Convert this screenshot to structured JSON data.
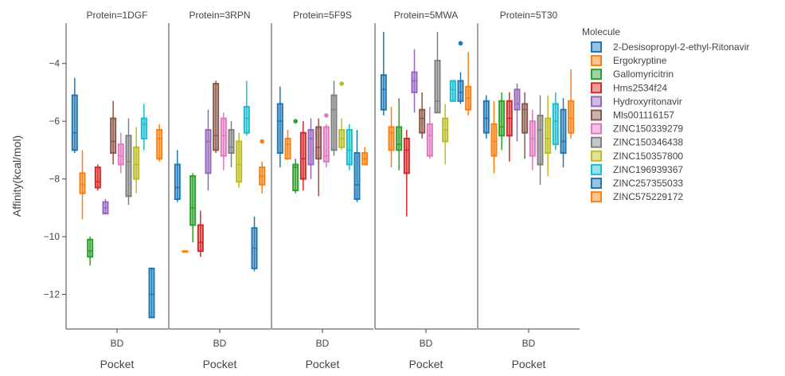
{
  "chart_data": {
    "type": "box",
    "xlabel": "Pocket",
    "ylabel": "Affinity(kcal/mol)",
    "x_category": "BD",
    "ylim": [
      -13.2,
      -2.6
    ],
    "y_ticks": [
      -12,
      -10,
      -8,
      -6,
      -4
    ],
    "y_tick_labels": [
      "−12",
      "−10",
      "−8",
      "−6",
      "−4"
    ],
    "legend_title": "Molecule",
    "legend_position": "right",
    "grid": false,
    "series": [
      {
        "name": "2-Desisopropyl-2-ethyl-Ritonavir",
        "color": "#1f77b4"
      },
      {
        "name": "Ergokryptine",
        "color": "#ff7f0e"
      },
      {
        "name": "Gallomyricitrin",
        "color": "#2ca02c"
      },
      {
        "name": "Hms2534f24",
        "color": "#d62728"
      },
      {
        "name": "Hydroxyritonavir",
        "color": "#9467bd"
      },
      {
        "name": "Mls001116157",
        "color": "#8c564b"
      },
      {
        "name": "ZINC150339279",
        "color": "#e377c2"
      },
      {
        "name": "ZINC150346438",
        "color": "#7f7f7f"
      },
      {
        "name": "ZINC150357800",
        "color": "#bcbd22"
      },
      {
        "name": "ZINC196939367",
        "color": "#17becf"
      },
      {
        "name": "ZINC257355033",
        "color": "#1f77b4"
      },
      {
        "name": "ZINC575229172",
        "color": "#ff7f0e"
      }
    ],
    "panels": [
      {
        "title": "Protein=1DGF",
        "boxes": [
          {
            "min": -7.1,
            "q1": -7.0,
            "median": -6.4,
            "q3": -5.1,
            "max": -4.5
          },
          {
            "min": -9.4,
            "q1": -8.5,
            "median": -8.2,
            "q3": -7.8,
            "max": -7.0
          },
          {
            "min": -11.0,
            "q1": -10.7,
            "median": -10.5,
            "q3": -10.1,
            "max": -10.0
          },
          {
            "min": -8.4,
            "q1": -8.3,
            "median": -8.1,
            "q3": -7.6,
            "max": -7.5
          },
          {
            "min": -9.2,
            "q1": -9.2,
            "median": -9.0,
            "q3": -8.8,
            "max": -8.7
          },
          {
            "min": -7.5,
            "q1": -7.1,
            "median": -6.7,
            "q3": -5.9,
            "max": -5.3
          },
          {
            "min": -7.8,
            "q1": -7.5,
            "median": -7.2,
            "q3": -6.8,
            "max": -6.4
          },
          {
            "min": -8.9,
            "q1": -8.6,
            "median": -7.4,
            "q3": -6.5,
            "max": -5.9
          },
          {
            "min": -8.5,
            "q1": -8.0,
            "median": -7.5,
            "q3": -6.9,
            "max": -6.2
          },
          {
            "min": -7.0,
            "q1": -6.6,
            "median": -6.1,
            "q3": -5.9,
            "max": -5.4
          },
          {
            "min": -12.8,
            "q1": -12.8,
            "median": -12.0,
            "q3": -11.1,
            "max": -11.1
          },
          {
            "min": -7.4,
            "q1": -7.3,
            "median": -6.6,
            "q3": -6.3,
            "max": -6.1
          }
        ]
      },
      {
        "title": "Protein=3RPN",
        "boxes": [
          {
            "min": -8.8,
            "q1": -8.7,
            "median": -8.3,
            "q3": -7.5,
            "max": -7.0
          },
          {
            "min": -10.5,
            "q1": -10.5,
            "median": -10.5,
            "q3": -10.5,
            "max": -10.5
          },
          {
            "min": -10.2,
            "q1": -9.6,
            "median": -9.0,
            "q3": -7.9,
            "max": -7.8
          },
          {
            "min": -10.7,
            "q1": -10.5,
            "median": -10.2,
            "q3": -9.6,
            "max": -9.1
          },
          {
            "min": -8.4,
            "q1": -7.8,
            "median": -6.7,
            "q3": -6.3,
            "max": -5.6
          },
          {
            "min": -7.1,
            "q1": -7.0,
            "median": -6.5,
            "q3": -4.7,
            "max": -4.6
          },
          {
            "min": -7.7,
            "q1": -7.2,
            "median": -6.5,
            "q3": -5.9,
            "max": -5.7
          },
          {
            "min": -7.6,
            "q1": -7.1,
            "median": -6.9,
            "q3": -6.3,
            "max": -6.0
          },
          {
            "min": -8.3,
            "q1": -8.1,
            "median": -7.5,
            "q3": -6.7,
            "max": -6.4
          },
          {
            "min": -6.5,
            "q1": -6.4,
            "median": -5.9,
            "q3": -5.5,
            "max": -4.6
          },
          {
            "min": -11.2,
            "q1": -11.1,
            "median": -10.4,
            "q3": -9.7,
            "max": -9.3
          },
          {
            "min": -8.5,
            "q1": -8.2,
            "median": -7.9,
            "q3": -7.6,
            "max": -7.4,
            "outliers": [
              -6.7
            ]
          }
        ]
      },
      {
        "title": "Protein=5F9S",
        "boxes": [
          {
            "min": -7.6,
            "q1": -7.1,
            "median": -6.0,
            "q3": -5.4,
            "max": -4.8
          },
          {
            "min": -7.3,
            "q1": -7.3,
            "median": -6.8,
            "q3": -6.6,
            "max": -6.3
          },
          {
            "min": -8.5,
            "q1": -8.4,
            "median": -7.6,
            "q3": -7.5,
            "max": -7.3,
            "outliers": [
              -6.0
            ]
          },
          {
            "min": -8.4,
            "q1": -8.0,
            "median": -7.3,
            "q3": -6.4,
            "max": -6.0
          },
          {
            "min": -8.0,
            "q1": -7.5,
            "median": -6.6,
            "q3": -6.3,
            "max": -5.9
          },
          {
            "min": -8.6,
            "q1": -7.3,
            "median": -6.9,
            "q3": -6.2,
            "max": -5.9
          },
          {
            "min": -7.6,
            "q1": -7.4,
            "median": -7.2,
            "q3": -6.2,
            "max": -6.1,
            "outliers": [
              -5.8
            ]
          },
          {
            "min": -7.2,
            "q1": -7.0,
            "median": -5.6,
            "q3": -5.1,
            "max": -4.6
          },
          {
            "min": -7.0,
            "q1": -6.9,
            "median": -6.6,
            "q3": -6.3,
            "max": -5.9,
            "outliers": [
              -4.7
            ]
          },
          {
            "min": -7.7,
            "q1": -7.5,
            "median": -7.0,
            "q3": -6.3,
            "max": -6.1
          },
          {
            "min": -8.8,
            "q1": -8.7,
            "median": -8.2,
            "q3": -7.1,
            "max": -6.3
          },
          {
            "min": -7.5,
            "q1": -7.5,
            "median": -7.3,
            "q3": -7.1,
            "max": -6.9
          }
        ]
      },
      {
        "title": "Protein=5MWA",
        "boxes": [
          {
            "min": -5.8,
            "q1": -5.6,
            "median": -4.9,
            "q3": -4.4,
            "max": -2.9
          },
          {
            "min": -7.6,
            "q1": -7.0,
            "median": -6.4,
            "q3": -6.2,
            "max": -5.5
          },
          {
            "min": -7.7,
            "q1": -7.0,
            "median": -6.8,
            "q3": -6.2,
            "max": -5.2
          },
          {
            "min": -9.3,
            "q1": -7.8,
            "median": -7.0,
            "q3": -6.6,
            "max": -6.3
          },
          {
            "min": -5.7,
            "q1": -5.0,
            "median": -4.6,
            "q3": -4.3,
            "max": -3.5
          },
          {
            "min": -6.6,
            "q1": -6.4,
            "median": -5.9,
            "q3": -5.6,
            "max": -5.0
          },
          {
            "min": -7.3,
            "q1": -7.2,
            "median": -6.5,
            "q3": -6.1,
            "max": -5.5
          },
          {
            "min": -5.7,
            "q1": -5.7,
            "median": -5.3,
            "q3": -3.9,
            "max": -2.9
          },
          {
            "min": -7.5,
            "q1": -6.7,
            "median": -6.3,
            "q3": -5.9,
            "max": -5.4
          },
          {
            "min": -5.3,
            "q1": -5.3,
            "median": -4.9,
            "q3": -4.6,
            "max": -4.6
          },
          {
            "min": -5.4,
            "q1": -5.3,
            "median": -5.0,
            "q3": -4.6,
            "max": -4.3,
            "outliers": [
              -3.3
            ]
          },
          {
            "min": -5.8,
            "q1": -5.6,
            "median": -5.2,
            "q3": -4.8,
            "max": -3.6
          }
        ]
      },
      {
        "title": "Protein=5T30",
        "boxes": [
          {
            "min": -6.6,
            "q1": -6.4,
            "median": -5.9,
            "q3": -5.3,
            "max": -5.1
          },
          {
            "min": -7.8,
            "q1": -7.2,
            "median": -6.7,
            "q3": -6.1,
            "max": -5.3
          },
          {
            "min": -7.0,
            "q1": -6.5,
            "median": -6.2,
            "q3": -5.3,
            "max": -5.0
          },
          {
            "min": -7.4,
            "q1": -6.5,
            "median": -5.9,
            "q3": -5.3,
            "max": -5.0
          },
          {
            "min": -6.7,
            "q1": -5.6,
            "median": -5.4,
            "q3": -4.9,
            "max": -4.7
          },
          {
            "min": -7.3,
            "q1": -6.4,
            "median": -5.6,
            "q3": -5.4,
            "max": -5.0
          },
          {
            "min": -7.7,
            "q1": -7.2,
            "median": -6.6,
            "q3": -6.0,
            "max": -5.6
          },
          {
            "min": -8.2,
            "q1": -7.5,
            "median": -6.3,
            "q3": -5.8,
            "max": -5.1
          },
          {
            "min": -7.9,
            "q1": -7.1,
            "median": -6.6,
            "q3": -5.9,
            "max": -5.1
          },
          {
            "min": -7.0,
            "q1": -6.8,
            "median": -6.0,
            "q3": -5.4,
            "max": -5.0
          },
          {
            "min": -7.6,
            "q1": -7.1,
            "median": -6.7,
            "q3": -5.6,
            "max": -5.2
          },
          {
            "min": -6.6,
            "q1": -6.4,
            "median": -5.9,
            "q3": -5.3,
            "max": -4.2
          }
        ]
      }
    ]
  }
}
